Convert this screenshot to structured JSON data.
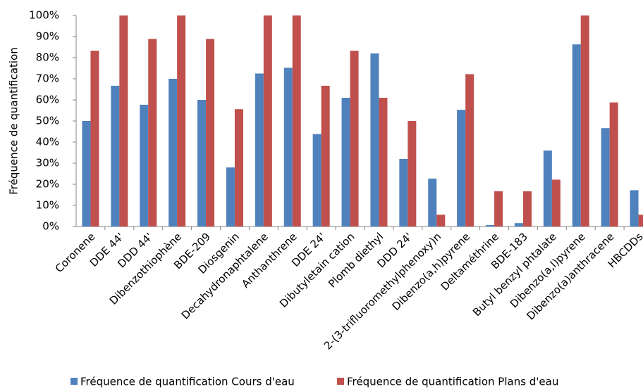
{
  "chart_data": {
    "type": "bar",
    "y_label": "Fréquence de quantification",
    "categories": [
      "Coronene",
      "DDE 44'",
      "DDD 44'",
      "Dibenzothiophène",
      "BDE-209",
      "Diosgenin",
      "Decahydronaphtalene",
      "Anthanthrene",
      "DDE 24'",
      "Dibutyletain cation",
      "Plomb diethyl",
      "DDD 24'",
      "2-(3-trifluoromethylphenoxy)n",
      "Dibenzo(a,h)pyrene",
      "Deltaméthrine",
      "BDE-183",
      "Butyl benzyl phtalate",
      "Dibenzo(a,l)pyrene",
      "Dibenzo(a)anthracene",
      "HBCDDs"
    ],
    "series": [
      {
        "name": "Fréquence de quantification Cours d'eau",
        "color": "#4f81bd",
        "values": [
          50,
          66.7,
          57.7,
          70,
          60,
          28,
          72.5,
          75.2,
          43.8,
          61,
          82,
          32,
          22.7,
          55.3,
          0.7,
          1.6,
          36,
          86.3,
          46.6,
          17.2
        ]
      },
      {
        "name": "Fréquence de quantification Plans d'eau",
        "color": "#c0504d",
        "values": [
          83.3,
          100,
          88.9,
          100,
          88.9,
          55.6,
          100,
          100,
          66.7,
          83.3,
          61,
          50,
          5.6,
          72.2,
          16.7,
          16.7,
          22.2,
          100,
          58.8,
          5.6
        ]
      }
    ],
    "ylim": [
      0,
      100
    ],
    "yticks": [
      {
        "value": 0,
        "label": "0%"
      },
      {
        "value": 10,
        "label": "10%"
      },
      {
        "value": 20,
        "label": "20%"
      },
      {
        "value": 30,
        "label": "30%"
      },
      {
        "value": 40,
        "label": "40%"
      },
      {
        "value": 50,
        "label": "50%"
      },
      {
        "value": 60,
        "label": "60%"
      },
      {
        "value": 70,
        "label": "70%"
      },
      {
        "value": 80,
        "label": "80%"
      },
      {
        "value": 90,
        "label": "90%"
      },
      {
        "value": 100,
        "label": "100%"
      }
    ],
    "grid": false,
    "legend": "bottom"
  }
}
